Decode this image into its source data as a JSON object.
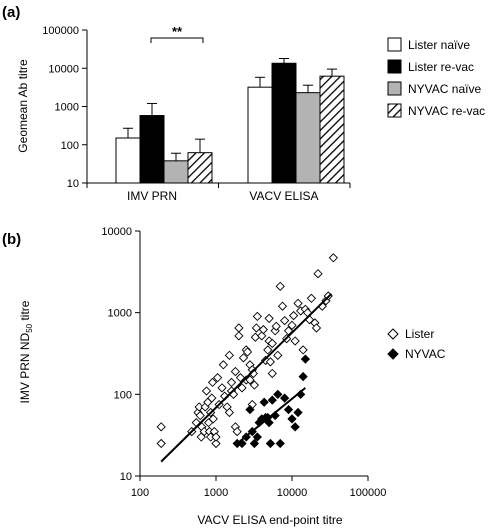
{
  "colors": {
    "white": "#ffffff",
    "black": "#000000",
    "grey": "#b3b3b3"
  },
  "chart_data": [
    {
      "type": "bar",
      "panel_label": "(a)",
      "ylabel": "Geomean Ab titre",
      "yscale": "log",
      "ylim": [
        10,
        100000
      ],
      "yticks": [
        "10",
        "100",
        "1000",
        "10000",
        "100000"
      ],
      "categories": [
        "IMV PRN",
        "VACV ELISA"
      ],
      "series": [
        {
          "name": "Lister naïve",
          "fill": "white",
          "values": [
            150,
            3200
          ],
          "error_upper": [
            270,
            5800
          ]
        },
        {
          "name": "Lister re-vac",
          "fill": "black",
          "values": [
            580,
            13500
          ],
          "error_upper": [
            1200,
            18000
          ]
        },
        {
          "name": "NYVAC naïve",
          "fill": "grey",
          "values": [
            38,
            2300
          ],
          "error_upper": [
            60,
            3600
          ]
        },
        {
          "name": "NYVAC re-vac",
          "fill": "hatch",
          "values": [
            62,
            6200
          ],
          "error_upper": [
            140,
            9500
          ]
        }
      ],
      "annotation": "**",
      "legend_position": "right"
    },
    {
      "type": "scatter",
      "panel_label": "(b)",
      "xlabel": "VACV ELISA end-point titre",
      "ylabel_prefix": "IMV PRN ND",
      "ylabel_sub": "50",
      "ylabel_suffix": " titre",
      "xscale": "log",
      "yscale": "log",
      "xlim": [
        100,
        100000
      ],
      "ylim": [
        10,
        10000
      ],
      "xticks": [
        "100",
        "1000",
        "10000",
        "100000"
      ],
      "yticks": [
        "10",
        "100",
        "1000",
        "10000"
      ],
      "legend_position": "right",
      "series": [
        {
          "name": "Lister",
          "marker": "open-diamond",
          "points": [
            [
              190,
              40
            ],
            [
              190,
              25
            ],
            [
              480,
              35
            ],
            [
              550,
              45
            ],
            [
              580,
              60
            ],
            [
              600,
              70
            ],
            [
              620,
              55
            ],
            [
              640,
              30
            ],
            [
              650,
              40
            ],
            [
              700,
              35
            ],
            [
              720,
              70
            ],
            [
              750,
              110
            ],
            [
              780,
              80
            ],
            [
              800,
              45
            ],
            [
              820,
              35
            ],
            [
              850,
              60
            ],
            [
              850,
              30
            ],
            [
              880,
              90
            ],
            [
              900,
              140
            ],
            [
              920,
              50
            ],
            [
              950,
              35
            ],
            [
              1000,
              25
            ],
            [
              1000,
              30
            ],
            [
              1050,
              160
            ],
            [
              1100,
              75
            ],
            [
              1200,
              120
            ],
            [
              1250,
              230
            ],
            [
              1300,
              95
            ],
            [
              1400,
              70
            ],
            [
              1500,
              60
            ],
            [
              1500,
              300
            ],
            [
              1600,
              140
            ],
            [
              1600,
              110
            ],
            [
              1700,
              100
            ],
            [
              1800,
              190
            ],
            [
              1800,
              40
            ],
            [
              1900,
              35
            ],
            [
              2000,
              650
            ],
            [
              2000,
              520
            ],
            [
              2100,
              160
            ],
            [
              2200,
              120
            ],
            [
              2300,
              280
            ],
            [
              2500,
              350
            ],
            [
              2500,
              150
            ],
            [
              2600,
              330
            ],
            [
              2800,
              150
            ],
            [
              2800,
              230
            ],
            [
              3000,
              200
            ],
            [
              3000,
              75
            ],
            [
              3100,
              180
            ],
            [
              3200,
              130
            ],
            [
              3300,
              500
            ],
            [
              3400,
              650
            ],
            [
              3500,
              900
            ],
            [
              4000,
              520
            ],
            [
              4200,
              620
            ],
            [
              4500,
              260
            ],
            [
              4800,
              350
            ],
            [
              5000,
              850
            ],
            [
              5000,
              450
            ],
            [
              5200,
              250
            ],
            [
              5500,
              420
            ],
            [
              5500,
              180
            ],
            [
              6000,
              600
            ],
            [
              6200,
              680
            ],
            [
              6500,
              300
            ],
            [
              7000,
              2100
            ],
            [
              7500,
              1200
            ],
            [
              8000,
              800
            ],
            [
              8500,
              480
            ],
            [
              9000,
              600
            ],
            [
              10000,
              700
            ],
            [
              10500,
              920
            ],
            [
              11000,
              450
            ],
            [
              12000,
              1300
            ],
            [
              13000,
              1050
            ],
            [
              14000,
              350
            ],
            [
              15000,
              1100
            ],
            [
              16000,
              1000
            ],
            [
              17000,
              820
            ],
            [
              18000,
              1500
            ],
            [
              20000,
              750
            ],
            [
              21000,
              650
            ],
            [
              22000,
              3000
            ],
            [
              25000,
              1200
            ],
            [
              28000,
              1400
            ],
            [
              30000,
              1600
            ],
            [
              35000,
              4700
            ]
          ],
          "trendline": [
            [
              190,
              15
            ],
            [
              33000,
              1700
            ]
          ]
        },
        {
          "name": "NYVAC",
          "marker": "filled-diamond",
          "points": [
            [
              1900,
              25
            ],
            [
              2200,
              25
            ],
            [
              2500,
              30
            ],
            [
              2800,
              65
            ],
            [
              3000,
              35
            ],
            [
              3200,
              25
            ],
            [
              3500,
              30
            ],
            [
              3700,
              45
            ],
            [
              4000,
              50
            ],
            [
              4300,
              80
            ],
            [
              4500,
              52
            ],
            [
              4800,
              52
            ],
            [
              5000,
              45
            ],
            [
              5200,
              25
            ],
            [
              5500,
              85
            ],
            [
              6000,
              55
            ],
            [
              6500,
              100
            ],
            [
              7000,
              25
            ],
            [
              8000,
              90
            ],
            [
              9000,
              65
            ],
            [
              10000,
              50
            ],
            [
              11000,
              40
            ],
            [
              12000,
              60
            ],
            [
              13000,
              100
            ],
            [
              14000,
              165
            ],
            [
              15000,
              270
            ]
          ],
          "trendline": [
            [
              1900,
              25
            ],
            [
              15000,
              120
            ]
          ]
        }
      ]
    }
  ]
}
